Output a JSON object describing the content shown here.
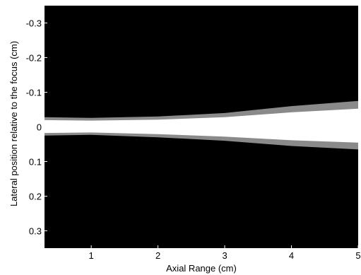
{
  "chart_data": {
    "type": "heatmap",
    "title": "",
    "xlabel": "Axial Range (cm)",
    "ylabel": "Lateral position relative to the focus (cm)",
    "xlim": [
      0.3,
      5.0
    ],
    "ylim": [
      -0.35,
      0.35
    ],
    "y_inverted": true,
    "x_ticks": [
      1,
      2,
      3,
      4,
      5
    ],
    "x_tick_labels": [
      "1",
      "2",
      "3",
      "4",
      "5"
    ],
    "y_ticks": [
      -0.3,
      -0.2,
      -0.1,
      0,
      0.1,
      0.2,
      0.3
    ],
    "y_tick_labels": [
      "-0.3",
      "-0.2",
      "-0.1",
      "0",
      "0.1",
      "0.2",
      "0.3"
    ],
    "colormap": "gray",
    "background_color": "#000000",
    "beam_color": "#ffffff",
    "beam_half_width": {
      "x": [
        0.3,
        1.0,
        2.0,
        3.0,
        4.0,
        5.0
      ],
      "top": [
        0.028,
        0.026,
        0.03,
        0.04,
        0.06,
        0.075
      ],
      "bottom": [
        0.025,
        0.023,
        0.03,
        0.04,
        0.055,
        0.065
      ]
    },
    "grid": false
  }
}
